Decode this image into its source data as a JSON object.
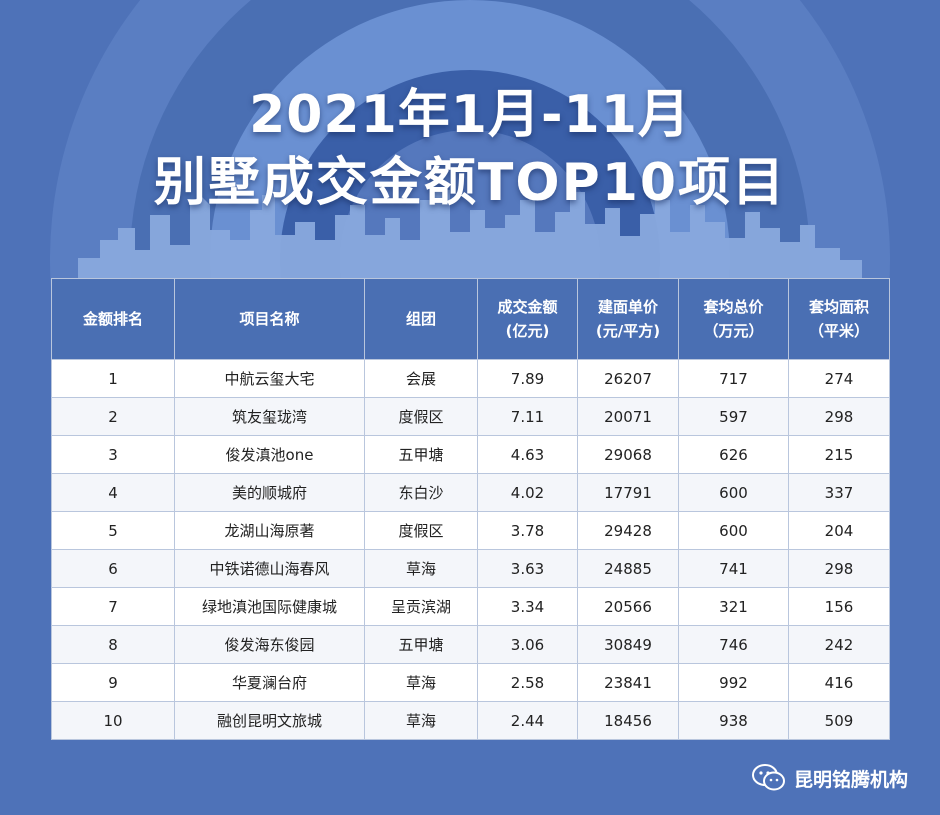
{
  "title_line1": "2021年1月-11月",
  "title_line2": "别墅成交金额TOP10项目",
  "table": {
    "headers": [
      {
        "line1": "金额排名",
        "line2": ""
      },
      {
        "line1": "项目名称",
        "line2": ""
      },
      {
        "line1": "组团",
        "line2": ""
      },
      {
        "line1": "成交金额",
        "line2": "(亿元)"
      },
      {
        "line1": "建面单价",
        "line2": "(元/平方)"
      },
      {
        "line1": "套均总价",
        "line2": "（万元）"
      },
      {
        "line1": "套均面积",
        "line2": "（平米）"
      }
    ],
    "rows": [
      [
        "1",
        "中航云玺大宅",
        "会展",
        "7.89",
        "26207",
        "717",
        "274"
      ],
      [
        "2",
        "筑友玺珑湾",
        "度假区",
        "7.11",
        "20071",
        "597",
        "298"
      ],
      [
        "3",
        "俊发滇池one",
        "五甲塘",
        "4.63",
        "29068",
        "626",
        "215"
      ],
      [
        "4",
        "美的顺城府",
        "东白沙",
        "4.02",
        "17791",
        "600",
        "337"
      ],
      [
        "5",
        "龙湖山海原著",
        "度假区",
        "3.78",
        "29428",
        "600",
        "204"
      ],
      [
        "6",
        "中铁诺德山海春风",
        "草海",
        "3.63",
        "24885",
        "741",
        "298"
      ],
      [
        "7",
        "绿地滇池国际健康城",
        "呈贡滨湖",
        "3.34",
        "20566",
        "321",
        "156"
      ],
      [
        "8",
        "俊发海东俊园",
        "五甲塘",
        "3.06",
        "30849",
        "746",
        "242"
      ],
      [
        "9",
        "华夏澜台府",
        "草海",
        "2.58",
        "23841",
        "992",
        "416"
      ],
      [
        "10",
        "融创昆明文旅城",
        "草海",
        "2.44",
        "18456",
        "938",
        "509"
      ]
    ]
  },
  "footer": {
    "account_name": "昆明铭腾机构",
    "icon": "wechat-icon"
  },
  "colors": {
    "background": "#4e72b8",
    "header_bg": "#4a6fb3",
    "header_text": "#ffffff",
    "cell_bg": "#ffffff"
  }
}
